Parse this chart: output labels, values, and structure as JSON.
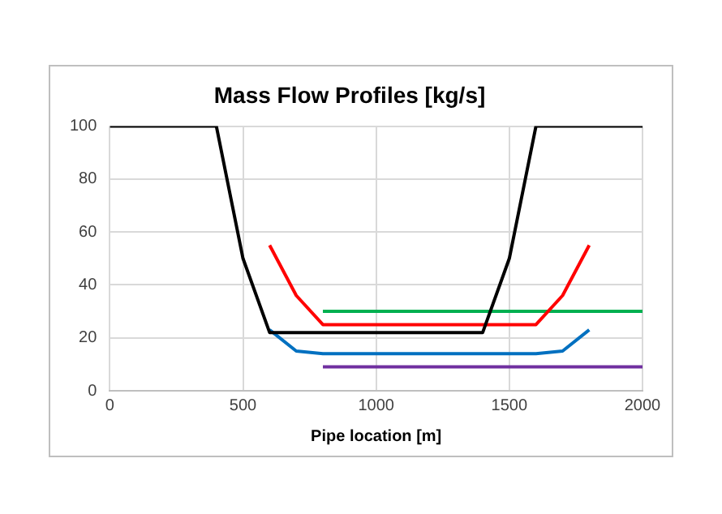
{
  "chart_data": {
    "type": "line",
    "title": "Mass Flow Profiles [kg/s]",
    "xlabel": "Pipe location [m]",
    "xlim": [
      0,
      2000
    ],
    "xticks": [
      0,
      500,
      1000,
      1500,
      2000
    ],
    "ylim": [
      0,
      100
    ],
    "yticks": [
      0,
      20,
      40,
      60,
      80,
      100
    ],
    "grid": true,
    "legend": false,
    "marker": "none",
    "line_style": "solid",
    "series": [
      {
        "color": "#000000",
        "x": [
          0,
          400,
          500,
          600,
          1400,
          1500,
          1600,
          2000
        ],
        "values": [
          100,
          100,
          50,
          22,
          22,
          50,
          100,
          100
        ]
      },
      {
        "color": "#ff0000",
        "x": [
          600,
          700,
          800,
          1600,
          1700,
          1800
        ],
        "values": [
          55,
          36,
          25,
          25,
          36,
          55
        ]
      },
      {
        "color": "#0070c0",
        "x": [
          600,
          700,
          800,
          1600,
          1700,
          1800
        ],
        "values": [
          23,
          15,
          14,
          14,
          15,
          23
        ]
      },
      {
        "color": "#00b050",
        "x": [
          800,
          2000
        ],
        "values": [
          30,
          30
        ]
      },
      {
        "color": "#7030a0",
        "x": [
          800,
          2000
        ],
        "values": [
          9,
          9
        ]
      }
    ]
  }
}
